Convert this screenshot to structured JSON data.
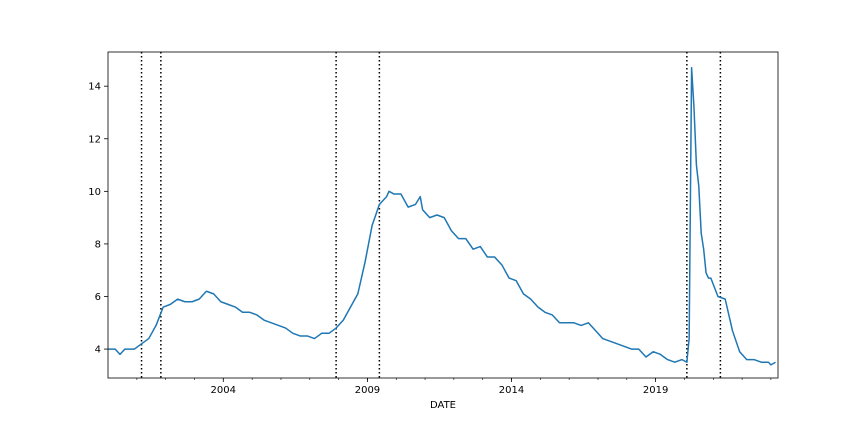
{
  "chart_data": {
    "type": "line",
    "title": "",
    "xlabel": "DATE",
    "ylabel": "",
    "xlim": [
      "2000-01-01",
      "2023-04-01"
    ],
    "ylim": [
      2.9,
      15.3
    ],
    "grid": false,
    "legend": "none",
    "x_ticks": [
      {
        "date": "2004-01-01",
        "label": "2004"
      },
      {
        "date": "2009-01-01",
        "label": "2009"
      },
      {
        "date": "2014-01-01",
        "label": "2014"
      },
      {
        "date": "2019-01-01",
        "label": "2019"
      }
    ],
    "y_ticks": [
      4,
      6,
      8,
      10,
      12,
      14
    ],
    "series": [
      {
        "color": "#1f77b4",
        "style": "solid",
        "points": [
          [
            "2000-01-01",
            4.0
          ],
          [
            "2000-04-01",
            4.0
          ],
          [
            "2000-06-01",
            3.8
          ],
          [
            "2000-08-01",
            4.0
          ],
          [
            "2000-12-01",
            4.0
          ],
          [
            "2001-03-01",
            4.2
          ],
          [
            "2001-06-01",
            4.4
          ],
          [
            "2001-09-01",
            4.9
          ],
          [
            "2001-12-01",
            5.6
          ],
          [
            "2002-03-01",
            5.7
          ],
          [
            "2002-06-01",
            5.9
          ],
          [
            "2002-09-01",
            5.8
          ],
          [
            "2002-12-01",
            5.8
          ],
          [
            "2003-03-01",
            5.9
          ],
          [
            "2003-06-01",
            6.2
          ],
          [
            "2003-09-01",
            6.1
          ],
          [
            "2003-12-01",
            5.8
          ],
          [
            "2004-03-01",
            5.7
          ],
          [
            "2004-06-01",
            5.6
          ],
          [
            "2004-09-01",
            5.4
          ],
          [
            "2004-12-01",
            5.4
          ],
          [
            "2005-03-01",
            5.3
          ],
          [
            "2005-06-01",
            5.1
          ],
          [
            "2005-09-01",
            5.0
          ],
          [
            "2005-12-01",
            4.9
          ],
          [
            "2006-03-01",
            4.8
          ],
          [
            "2006-06-01",
            4.6
          ],
          [
            "2006-09-01",
            4.5
          ],
          [
            "2006-12-01",
            4.5
          ],
          [
            "2007-03-01",
            4.4
          ],
          [
            "2007-06-01",
            4.6
          ],
          [
            "2007-09-01",
            4.6
          ],
          [
            "2007-12-01",
            4.8
          ],
          [
            "2008-03-01",
            5.1
          ],
          [
            "2008-06-01",
            5.6
          ],
          [
            "2008-09-01",
            6.1
          ],
          [
            "2008-12-01",
            7.3
          ],
          [
            "2009-03-01",
            8.7
          ],
          [
            "2009-06-01",
            9.5
          ],
          [
            "2009-09-01",
            9.8
          ],
          [
            "2009-10-01",
            10.0
          ],
          [
            "2009-12-01",
            9.9
          ],
          [
            "2010-03-01",
            9.9
          ],
          [
            "2010-06-01",
            9.4
          ],
          [
            "2010-09-01",
            9.5
          ],
          [
            "2010-11-01",
            9.8
          ],
          [
            "2010-12-01",
            9.3
          ],
          [
            "2011-03-01",
            9.0
          ],
          [
            "2011-06-01",
            9.1
          ],
          [
            "2011-09-01",
            9.0
          ],
          [
            "2011-12-01",
            8.5
          ],
          [
            "2012-03-01",
            8.2
          ],
          [
            "2012-06-01",
            8.2
          ],
          [
            "2012-09-01",
            7.8
          ],
          [
            "2012-12-01",
            7.9
          ],
          [
            "2013-03-01",
            7.5
          ],
          [
            "2013-06-01",
            7.5
          ],
          [
            "2013-09-01",
            7.2
          ],
          [
            "2013-12-01",
            6.7
          ],
          [
            "2014-03-01",
            6.6
          ],
          [
            "2014-06-01",
            6.1
          ],
          [
            "2014-09-01",
            5.9
          ],
          [
            "2014-12-01",
            5.6
          ],
          [
            "2015-03-01",
            5.4
          ],
          [
            "2015-06-01",
            5.3
          ],
          [
            "2015-09-01",
            5.0
          ],
          [
            "2015-12-01",
            5.0
          ],
          [
            "2016-03-01",
            5.0
          ],
          [
            "2016-06-01",
            4.9
          ],
          [
            "2016-09-01",
            5.0
          ],
          [
            "2016-12-01",
            4.7
          ],
          [
            "2017-03-01",
            4.4
          ],
          [
            "2017-06-01",
            4.3
          ],
          [
            "2017-09-01",
            4.2
          ],
          [
            "2017-12-01",
            4.1
          ],
          [
            "2018-03-01",
            4.0
          ],
          [
            "2018-06-01",
            4.0
          ],
          [
            "2018-09-01",
            3.7
          ],
          [
            "2018-12-01",
            3.9
          ],
          [
            "2019-03-01",
            3.8
          ],
          [
            "2019-06-01",
            3.6
          ],
          [
            "2019-09-01",
            3.5
          ],
          [
            "2019-12-01",
            3.6
          ],
          [
            "2020-02-01",
            3.5
          ],
          [
            "2020-03-01",
            4.4
          ],
          [
            "2020-04-01",
            14.7
          ],
          [
            "2020-05-01",
            13.2
          ],
          [
            "2020-06-01",
            11.0
          ],
          [
            "2020-07-01",
            10.2
          ],
          [
            "2020-08-01",
            8.4
          ],
          [
            "2020-09-01",
            7.8
          ],
          [
            "2020-10-01",
            6.9
          ],
          [
            "2020-11-01",
            6.7
          ],
          [
            "2020-12-01",
            6.7
          ],
          [
            "2021-03-01",
            6.0
          ],
          [
            "2021-06-01",
            5.9
          ],
          [
            "2021-09-01",
            4.7
          ],
          [
            "2021-12-01",
            3.9
          ],
          [
            "2022-03-01",
            3.6
          ],
          [
            "2022-06-01",
            3.6
          ],
          [
            "2022-09-01",
            3.5
          ],
          [
            "2022-12-01",
            3.5
          ],
          [
            "2023-01-01",
            3.4
          ],
          [
            "2023-03-01",
            3.5
          ]
        ]
      }
    ],
    "vlines": [
      {
        "date": "2001-03-01",
        "style": "dotted",
        "color": "#000000"
      },
      {
        "date": "2001-11-01",
        "style": "dotted",
        "color": "#000000"
      },
      {
        "date": "2007-12-01",
        "style": "dotted",
        "color": "#000000"
      },
      {
        "date": "2009-06-01",
        "style": "dotted",
        "color": "#000000"
      },
      {
        "date": "2020-02-01",
        "style": "dotted",
        "color": "#000000"
      },
      {
        "date": "2021-04-01",
        "style": "dotted",
        "color": "#000000"
      }
    ]
  }
}
